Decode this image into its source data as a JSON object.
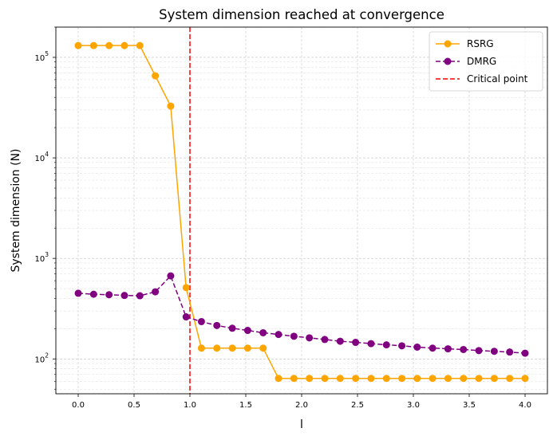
{
  "chart_data": {
    "type": "line",
    "title": "System dimension reached at convergence",
    "xlabel": "l",
    "ylabel": "System dimension (N)",
    "xlim": [
      -0.2,
      4.2
    ],
    "ylim": [
      45,
      200000
    ],
    "yscale": "log",
    "grid": true,
    "legend_position": "top-right",
    "x_ticks": [
      0.0,
      0.5,
      1.0,
      1.5,
      2.0,
      2.5,
      3.0,
      3.5,
      4.0
    ],
    "x_tick_labels": [
      "0.0",
      "0.5",
      "1.0",
      "1.5",
      "2.0",
      "2.5",
      "3.0",
      "3.5",
      "4.0"
    ],
    "y_ticks": [
      100,
      1000,
      10000,
      100000
    ],
    "x": [
      0.0,
      0.138,
      0.276,
      0.414,
      0.552,
      0.69,
      0.828,
      0.966,
      1.103,
      1.241,
      1.379,
      1.517,
      1.655,
      1.793,
      1.931,
      2.069,
      2.207,
      2.345,
      2.483,
      2.621,
      2.759,
      2.897,
      3.034,
      3.172,
      3.31,
      3.448,
      3.586,
      3.724,
      3.862,
      4.0
    ],
    "series": [
      {
        "name": "RSRG",
        "color": "#FFA500",
        "line_style": "solid",
        "values": [
          131072,
          131072,
          131072,
          131072,
          131072,
          65536,
          32768,
          512,
          128,
          128,
          128,
          128,
          128,
          64,
          64,
          64,
          64,
          64,
          64,
          64,
          64,
          64,
          64,
          64,
          64,
          64,
          64,
          64,
          64,
          64
        ]
      },
      {
        "name": "DMRG",
        "color": "#800080",
        "line_style": "dashed",
        "values": [
          450,
          440,
          435,
          428,
          425,
          465,
          670,
          262,
          235,
          215,
          202,
          192,
          182,
          175,
          168,
          162,
          156,
          150,
          146,
          142,
          138,
          135,
          131,
          128,
          126,
          124,
          121,
          119,
          117,
          114
        ]
      }
    ],
    "vlines": [
      {
        "name": "Critical point",
        "x": 1.0,
        "color": "#FF0000",
        "line_style": "dashed"
      }
    ]
  }
}
